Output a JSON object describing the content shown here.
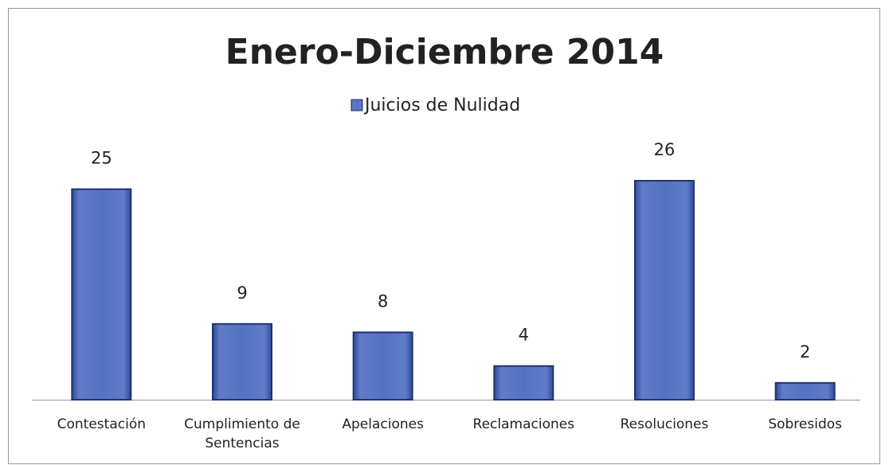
{
  "chart_data": {
    "type": "bar",
    "title": "Enero-Diciembre 2014",
    "categories": [
      "Contestación",
      "Cumplimiento de Sentencias",
      "Apelaciones",
      "Reclamaciones",
      "Resoluciones",
      "Sobresidos"
    ],
    "series": [
      {
        "name": "Juicios de Nulidad",
        "color": "#4f6bbd",
        "values": [
          25,
          9,
          8,
          4,
          26,
          2
        ]
      }
    ],
    "legend": "top",
    "grid": false
  }
}
